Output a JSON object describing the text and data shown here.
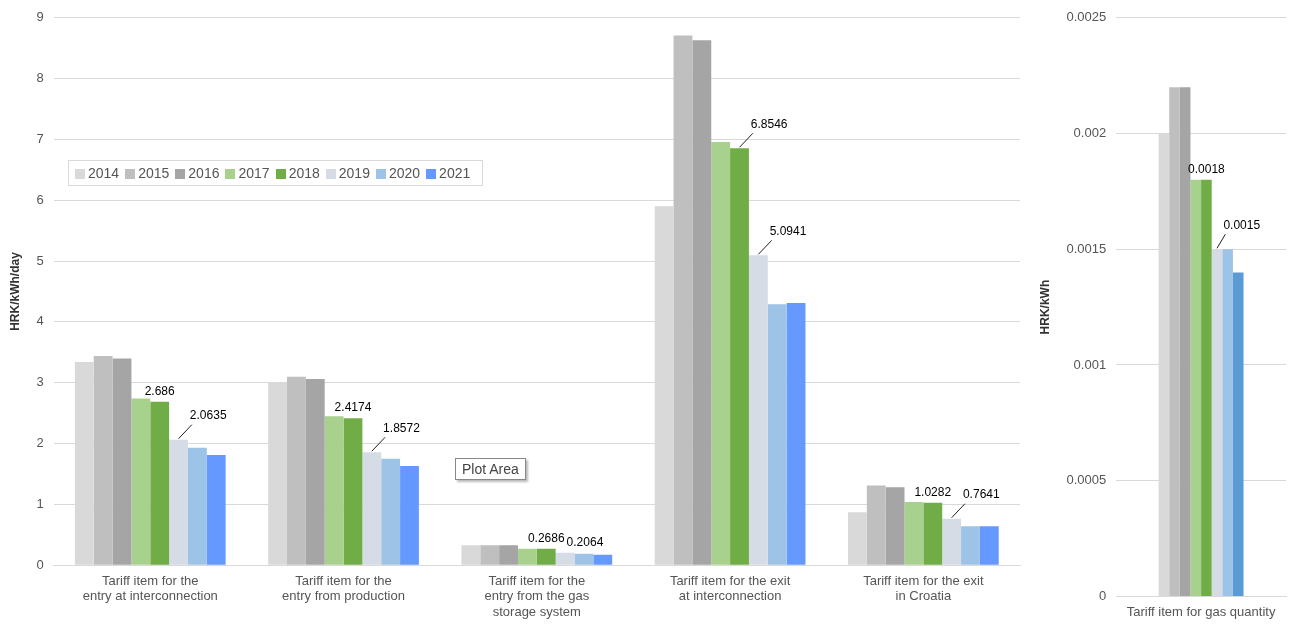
{
  "chart_data": [
    {
      "type": "bar",
      "ylabel": "HRK/kWh/day",
      "categories": [
        "Tariff item for the entry at interconnection",
        "Tariff item for the entry from production",
        "Tariff item for the entry from the gas storage system",
        "Tariff item for the exit at interconnection",
        "Tariff item for the exit in Croatia"
      ],
      "ylim": [
        0,
        9
      ],
      "yticks": [
        0,
        1,
        2,
        3,
        4,
        5,
        6,
        7,
        8,
        9
      ],
      "grid": "y",
      "legend": "top left",
      "annotations": [
        "Plot Area"
      ],
      "series": [
        {
          "name": "2014",
          "color": "#d9d9d9",
          "values": [
            3.34,
            3.01,
            0.33,
            5.9,
            0.87
          ]
        },
        {
          "name": "2015",
          "color": "#bfbfbf",
          "values": [
            3.44,
            3.1,
            0.33,
            8.71,
            1.31
          ]
        },
        {
          "name": "2016",
          "color": "#a5a5a5",
          "values": [
            3.4,
            3.06,
            0.33,
            8.63,
            1.28
          ]
        },
        {
          "name": "2017",
          "color": "#a9d18e",
          "values": [
            2.74,
            2.45,
            0.27,
            6.96,
            1.04
          ]
        },
        {
          "name": "2018",
          "color": "#70ad47",
          "values": [
            2.686,
            2.4174,
            0.2686,
            6.8546,
            1.0282
          ],
          "value_labels": [
            "2.686",
            "2.4174",
            "0.2686",
            "6.8546",
            "1.0282"
          ]
        },
        {
          "name": "2019",
          "color": "#d6dce5",
          "values": [
            2.0635,
            1.8572,
            0.2064,
            5.0941,
            0.7641
          ],
          "value_labels": [
            "2.0635",
            "1.8572",
            "0.2064",
            "5.0941",
            "0.7641"
          ]
        },
        {
          "name": "2020",
          "color": "#9dc3e6",
          "values": [
            1.93,
            1.75,
            0.19,
            4.29,
            0.64
          ]
        },
        {
          "name": "2021",
          "color": "#6699ff",
          "values": [
            1.81,
            1.63,
            0.17,
            4.31,
            0.64
          ]
        }
      ]
    },
    {
      "type": "bar",
      "ylabel": "HRK/kWh",
      "categories": [
        "Tariff item for gas quantity"
      ],
      "ylim": [
        0,
        0.0025
      ],
      "yticks": [
        0,
        0.0005,
        0.001,
        0.0015,
        0.002,
        0.0025
      ],
      "grid": "y",
      "series": [
        {
          "color": "#d9d9d9",
          "values": [
            0.002
          ]
        },
        {
          "color": "#bfbfbf",
          "values": [
            0.0022
          ]
        },
        {
          "color": "#a5a5a5",
          "values": [
            0.0022
          ]
        },
        {
          "color": "#a9d18e",
          "values": [
            0.0018
          ]
        },
        {
          "color": "#70ad47",
          "values": [
            0.0018
          ],
          "value_labels": [
            "0.0018"
          ]
        },
        {
          "color": "#d6dce5",
          "values": [
            0.0015
          ],
          "value_labels": [
            "0.0015"
          ]
        },
        {
          "color": "#9dc3e6",
          "values": [
            0.0015
          ]
        },
        {
          "color": "#5b9bd5",
          "values": [
            0.0014
          ]
        }
      ]
    }
  ]
}
